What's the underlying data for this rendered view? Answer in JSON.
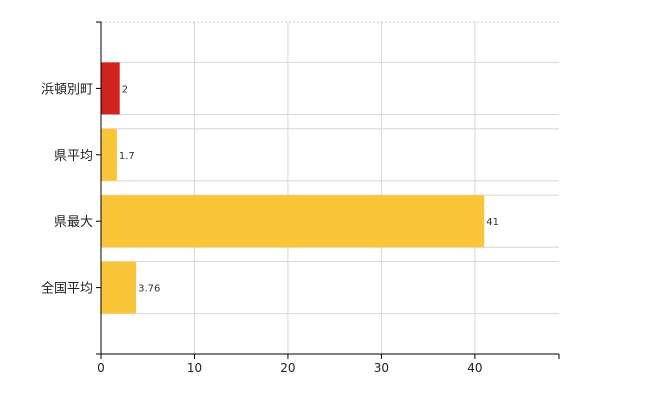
{
  "chart_data": {
    "type": "bar",
    "orientation": "horizontal",
    "title": "",
    "xlabel": "",
    "ylabel": "",
    "categories": [
      "浜頓別町",
      "県平均",
      "県最大",
      "全国平均"
    ],
    "values": [
      2,
      1.7,
      41,
      3.76
    ],
    "value_labels": [
      "2",
      "1.7",
      "41",
      "3.76"
    ],
    "bar_colors": [
      "#d0231d",
      "#f9c639",
      "#f9c639",
      "#f9c639"
    ],
    "xlim": [
      0,
      49
    ],
    "xticks": [
      0,
      10,
      20,
      30,
      40
    ],
    "xtick_labels": [
      "0",
      "10",
      "20",
      "30",
      "40"
    ],
    "grid": true,
    "legend": "none"
  }
}
